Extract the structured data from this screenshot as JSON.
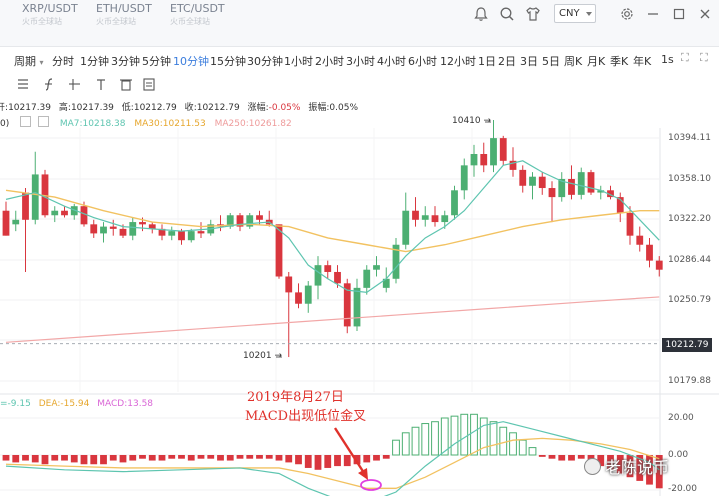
{
  "header": {
    "pair_tabs": [
      {
        "symbol": "XRP/USDT",
        "subtitle": "火币全球站"
      },
      {
        "symbol": "ETH/USDT",
        "subtitle": "火币全球站"
      },
      {
        "symbol": "ETC/USDT",
        "subtitle": "火币全球站"
      }
    ],
    "currency": "CNY",
    "icons": [
      "bell-icon",
      "search-icon",
      "shirt-icon",
      "gear-icon",
      "minimize-icon",
      "maximize-icon",
      "close-icon"
    ]
  },
  "timeframes": {
    "period_label": "周期",
    "items": [
      "分时",
      "1分钟",
      "3分钟",
      "5分钟",
      "10分钟",
      "15分钟",
      "30分钟",
      "1小时",
      "2小时",
      "3小时",
      "4小时",
      "6小时",
      "12小时",
      "1日",
      "2日",
      "3日",
      "5日",
      "周K",
      "月K",
      "季K",
      "年K",
      "1s"
    ],
    "active": "10分钟"
  },
  "ohlc": {
    "open_label": "开",
    "open": "10217.39",
    "high_label": "高",
    "high": "10217.39",
    "low_label": "低",
    "low": "10212.79",
    "close_label": "收",
    "close": "10212.79",
    "change_label": "涨幅",
    "change": "-0.05%",
    "amplitude_label": "振幅",
    "amplitude": "0.05%"
  },
  "ma": {
    "prefix": "0)",
    "ma7": "MA7:10218.38",
    "ma30": "MA30:10211.53",
    "ma250": "MA250:10261.82",
    "colors": {
      "ma7": "#5ec5b0",
      "ma30": "#f2c261",
      "ma250": "#f2a7a7"
    }
  },
  "macd_legend": {
    "dif": "=-9.15",
    "dea": "DEA:-15.94",
    "macd": "MACD:13.58",
    "colors": {
      "dif": "#5ec5b0",
      "dea": "#f2c261",
      "macd": "#d966d6"
    }
  },
  "colors": {
    "up": "#4caf72",
    "down": "#d9363e",
    "active_tab": "#3b7ddd",
    "annotation": "#e0312b"
  },
  "chart_data": {
    "type": "candlestick",
    "price_axis_ticks": [
      "10394.11",
      "10358.10",
      "10322.20",
      "10286.44",
      "10250.79",
      "10179.88"
    ],
    "current_price": "10212.79",
    "macd_axis_ticks": [
      "20.00",
      "0.00",
      "-20.00"
    ],
    "high_marker": "10410",
    "low_marker": "10201",
    "candles": [
      {
        "o": 10330,
        "h": 10338,
        "l": 10308,
        "c": 10308
      },
      {
        "o": 10318,
        "h": 10330,
        "l": 10312,
        "c": 10322
      },
      {
        "o": 10346,
        "h": 10350,
        "l": 10276,
        "c": 10322
      },
      {
        "o": 10322,
        "h": 10382,
        "l": 10318,
        "c": 10362
      },
      {
        "o": 10362,
        "h": 10366,
        "l": 10324,
        "c": 10326
      },
      {
        "o": 10326,
        "h": 10334,
        "l": 10320,
        "c": 10330
      },
      {
        "o": 10330,
        "h": 10334,
        "l": 10324,
        "c": 10326
      },
      {
        "o": 10326,
        "h": 10336,
        "l": 10322,
        "c": 10334
      },
      {
        "o": 10334,
        "h": 10338,
        "l": 10316,
        "c": 10318
      },
      {
        "o": 10318,
        "h": 10322,
        "l": 10306,
        "c": 10310
      },
      {
        "o": 10310,
        "h": 10320,
        "l": 10302,
        "c": 10316
      },
      {
        "o": 10316,
        "h": 10322,
        "l": 10308,
        "c": 10314
      },
      {
        "o": 10314,
        "h": 10318,
        "l": 10306,
        "c": 10308
      },
      {
        "o": 10308,
        "h": 10324,
        "l": 10304,
        "c": 10320
      },
      {
        "o": 10320,
        "h": 10324,
        "l": 10312,
        "c": 10318
      },
      {
        "o": 10318,
        "h": 10320,
        "l": 10310,
        "c": 10314
      },
      {
        "o": 10314,
        "h": 10318,
        "l": 10304,
        "c": 10308
      },
      {
        "o": 10308,
        "h": 10316,
        "l": 10304,
        "c": 10312
      },
      {
        "o": 10312,
        "h": 10314,
        "l": 10300,
        "c": 10304
      },
      {
        "o": 10304,
        "h": 10314,
        "l": 10302,
        "c": 10312
      },
      {
        "o": 10312,
        "h": 10320,
        "l": 10306,
        "c": 10310
      },
      {
        "o": 10310,
        "h": 10322,
        "l": 10308,
        "c": 10318
      },
      {
        "o": 10318,
        "h": 10326,
        "l": 10312,
        "c": 10316
      },
      {
        "o": 10316,
        "h": 10328,
        "l": 10314,
        "c": 10326
      },
      {
        "o": 10326,
        "h": 10328,
        "l": 10312,
        "c": 10316
      },
      {
        "o": 10316,
        "h": 10328,
        "l": 10314,
        "c": 10326
      },
      {
        "o": 10326,
        "h": 10330,
        "l": 10318,
        "c": 10322
      },
      {
        "o": 10322,
        "h": 10330,
        "l": 10316,
        "c": 10318
      },
      {
        "o": 10318,
        "h": 10318,
        "l": 10270,
        "c": 10272
      },
      {
        "o": 10272,
        "h": 10276,
        "l": 10201,
        "c": 10258
      },
      {
        "o": 10258,
        "h": 10266,
        "l": 10244,
        "c": 10248
      },
      {
        "o": 10248,
        "h": 10268,
        "l": 10240,
        "c": 10264
      },
      {
        "o": 10264,
        "h": 10290,
        "l": 10252,
        "c": 10282
      },
      {
        "o": 10282,
        "h": 10286,
        "l": 10270,
        "c": 10276
      },
      {
        "o": 10276,
        "h": 10282,
        "l": 10262,
        "c": 10266
      },
      {
        "o": 10266,
        "h": 10270,
        "l": 10222,
        "c": 10228
      },
      {
        "o": 10228,
        "h": 10270,
        "l": 10224,
        "c": 10262
      },
      {
        "o": 10262,
        "h": 10282,
        "l": 10256,
        "c": 10278
      },
      {
        "o": 10278,
        "h": 10290,
        "l": 10272,
        "c": 10282
      },
      {
        "o": 10262,
        "h": 10280,
        "l": 10258,
        "c": 10270
      },
      {
        "o": 10270,
        "h": 10306,
        "l": 10266,
        "c": 10300
      },
      {
        "o": 10300,
        "h": 10346,
        "l": 10296,
        "c": 10330
      },
      {
        "o": 10330,
        "h": 10342,
        "l": 10316,
        "c": 10322
      },
      {
        "o": 10322,
        "h": 10334,
        "l": 10316,
        "c": 10326
      },
      {
        "o": 10326,
        "h": 10334,
        "l": 10316,
        "c": 10320
      },
      {
        "o": 10320,
        "h": 10330,
        "l": 10314,
        "c": 10326
      },
      {
        "o": 10326,
        "h": 10352,
        "l": 10322,
        "c": 10348
      },
      {
        "o": 10348,
        "h": 10376,
        "l": 10340,
        "c": 10370
      },
      {
        "o": 10370,
        "h": 10388,
        "l": 10360,
        "c": 10380
      },
      {
        "o": 10380,
        "h": 10390,
        "l": 10364,
        "c": 10370
      },
      {
        "o": 10370,
        "h": 10410,
        "l": 10364,
        "c": 10394
      },
      {
        "o": 10394,
        "h": 10396,
        "l": 10370,
        "c": 10374
      },
      {
        "o": 10374,
        "h": 10386,
        "l": 10360,
        "c": 10366
      },
      {
        "o": 10366,
        "h": 10370,
        "l": 10346,
        "c": 10352
      },
      {
        "o": 10352,
        "h": 10364,
        "l": 10340,
        "c": 10360
      },
      {
        "o": 10360,
        "h": 10364,
        "l": 10344,
        "c": 10350
      },
      {
        "o": 10350,
        "h": 10356,
        "l": 10320,
        "c": 10342
      },
      {
        "o": 10342,
        "h": 10364,
        "l": 10338,
        "c": 10358
      },
      {
        "o": 10358,
        "h": 10370,
        "l": 10340,
        "c": 10344
      },
      {
        "o": 10344,
        "h": 10368,
        "l": 10340,
        "c": 10364
      },
      {
        "o": 10364,
        "h": 10366,
        "l": 10344,
        "c": 10346
      },
      {
        "o": 10346,
        "h": 10352,
        "l": 10340,
        "c": 10348
      },
      {
        "o": 10348,
        "h": 10352,
        "l": 10340,
        "c": 10342
      },
      {
        "o": 10342,
        "h": 10346,
        "l": 10320,
        "c": 10328
      },
      {
        "o": 10328,
        "h": 10334,
        "l": 10300,
        "c": 10308
      },
      {
        "o": 10308,
        "h": 10316,
        "l": 10294,
        "c": 10300
      },
      {
        "o": 10300,
        "h": 10306,
        "l": 10280,
        "c": 10286
      },
      {
        "o": 10286,
        "h": 10290,
        "l": 10272,
        "c": 10278
      }
    ],
    "ma7": [
      [
        0,
        10340
      ],
      [
        3,
        10346
      ],
      [
        6,
        10334
      ],
      [
        9,
        10324
      ],
      [
        12,
        10316
      ],
      [
        15,
        10314
      ],
      [
        18,
        10312
      ],
      [
        21,
        10314
      ],
      [
        24,
        10318
      ],
      [
        27,
        10320
      ],
      [
        29,
        10306
      ],
      [
        31,
        10282
      ],
      [
        33,
        10270
      ],
      [
        35,
        10260
      ],
      [
        37,
        10258
      ],
      [
        39,
        10270
      ],
      [
        41,
        10290
      ],
      [
        43,
        10306
      ],
      [
        45,
        10316
      ],
      [
        47,
        10330
      ],
      [
        49,
        10350
      ],
      [
        51,
        10370
      ],
      [
        53,
        10374
      ],
      [
        55,
        10364
      ],
      [
        57,
        10356
      ],
      [
        59,
        10352
      ],
      [
        61,
        10348
      ],
      [
        63,
        10340
      ],
      [
        65,
        10322
      ],
      [
        67,
        10304
      ]
    ],
    "ma30": [
      [
        0,
        10348
      ],
      [
        5,
        10342
      ],
      [
        10,
        10330
      ],
      [
        15,
        10320
      ],
      [
        20,
        10316
      ],
      [
        25,
        10318
      ],
      [
        29,
        10316
      ],
      [
        33,
        10306
      ],
      [
        37,
        10300
      ],
      [
        41,
        10294
      ],
      [
        45,
        10300
      ],
      [
        49,
        10308
      ],
      [
        53,
        10316
      ],
      [
        57,
        10322
      ],
      [
        61,
        10326
      ],
      [
        65,
        10330
      ],
      [
        67,
        10330
      ]
    ],
    "ma250": [
      [
        0,
        10214
      ],
      [
        10,
        10220
      ],
      [
        20,
        10226
      ],
      [
        30,
        10232
      ],
      [
        40,
        10238
      ],
      [
        50,
        10244
      ],
      [
        60,
        10250
      ],
      [
        67,
        10254
      ]
    ],
    "macd_hist": [
      -3,
      -4,
      -3,
      -4,
      -5,
      -3,
      -3,
      -4,
      -5,
      -5,
      -5,
      -3,
      -4,
      -3,
      -2,
      -3,
      -3,
      -2,
      -2,
      -3,
      -2,
      -2,
      -3,
      -3,
      -2,
      -2,
      -2,
      -2,
      -3,
      -4,
      -5,
      -7,
      -8,
      -7,
      -6,
      -6,
      -5,
      -4,
      -3,
      -2,
      8,
      12,
      15,
      17,
      18,
      20,
      21,
      22,
      22,
      20,
      18,
      15,
      12,
      8,
      4,
      -1,
      -2,
      -3,
      -3,
      -2,
      -4,
      -6,
      -8,
      -10,
      -12,
      -14,
      -16,
      -18
    ],
    "dif": [
      [
        0,
        -6
      ],
      [
        6,
        -8
      ],
      [
        12,
        -9
      ],
      [
        18,
        -8
      ],
      [
        24,
        -7
      ],
      [
        28,
        -10
      ],
      [
        31,
        -18
      ],
      [
        34,
        -24
      ],
      [
        37,
        -26
      ],
      [
        40,
        -20
      ],
      [
        43,
        -6
      ],
      [
        46,
        6
      ],
      [
        49,
        16
      ],
      [
        51,
        18
      ],
      [
        54,
        14
      ],
      [
        57,
        10
      ],
      [
        60,
        6
      ],
      [
        63,
        2
      ],
      [
        66,
        -4
      ],
      [
        67,
        -8
      ]
    ],
    "dea": [
      [
        0,
        -5
      ],
      [
        6,
        -6
      ],
      [
        12,
        -7
      ],
      [
        18,
        -7
      ],
      [
        24,
        -7
      ],
      [
        28,
        -7
      ],
      [
        31,
        -10
      ],
      [
        34,
        -14
      ],
      [
        37,
        -18
      ],
      [
        40,
        -18
      ],
      [
        43,
        -12
      ],
      [
        46,
        -4
      ],
      [
        49,
        4
      ],
      [
        52,
        8
      ],
      [
        55,
        9
      ],
      [
        58,
        8
      ],
      [
        61,
        6
      ],
      [
        64,
        3
      ],
      [
        67,
        -2
      ]
    ],
    "macd_ylim": [
      -25,
      25
    ]
  },
  "annotation": {
    "line1": "2019年8月27日",
    "line2": "MACD出现低位金叉"
  },
  "watermark": "老陈说币"
}
